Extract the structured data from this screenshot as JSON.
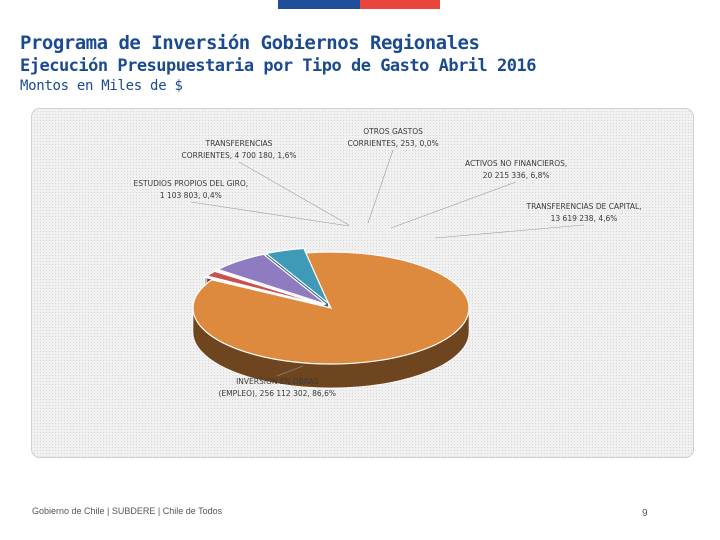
{
  "header": {
    "title": "Programa de Inversión Gobiernos Regionales",
    "subtitle": "Ejecución Presupuestaria por Tipo de Gasto Abril 2016",
    "units": "Montos en Miles de $"
  },
  "chart_data": {
    "type": "pie",
    "style": "3d-exploded",
    "slices": [
      {
        "name": "INVERSION EN OBRAS (EMPLEO)",
        "value": 256112302,
        "percent": 86.6,
        "label": "INVERSION EN OBRAS (EMPLEO), 256 112 302, 86,6%",
        "color": "#dd8a3e"
      },
      {
        "name": "ESTUDIOS PROPIOS DEL GIRO",
        "value": 1103803,
        "percent": 0.4,
        "label": "ESTUDIOS PROPIOS DEL GIRO, 1 103 803, 0,4%",
        "color": "#f3f3f3"
      },
      {
        "name": "TRANSFERENCIAS CORRIENTES",
        "value": 4700180,
        "percent": 1.6,
        "label": "TRANSFERENCIAS CORRIENTES, 4 700 180, 1,6%",
        "color": "#c9524f"
      },
      {
        "name": "OTROS GASTOS CORRIENTES",
        "value": 253,
        "percent": 0.0,
        "label": "OTROS GASTOS CORRIENTES, 253, 0,0%",
        "color": "#dcdcdc"
      },
      {
        "name": "ACTIVOS NO FINANCIEROS",
        "value": 20215336,
        "percent": 6.8,
        "label": "ACTIVOS NO FINANCIEROS, 20 215 336, 6,8%",
        "color": "#8f7cc0"
      },
      {
        "name": "TRANSFERENCIAS DE CAPITAL",
        "value": 13619238,
        "percent": 4.6,
        "label": "TRANSFERENCIAS DE CAPITAL, 13 619 238, 4,6%",
        "color": "#3f9ab8"
      }
    ],
    "label_lines": {
      "TRANSFERENCIAS CORRIENTES": [
        "TRANSFERENCIAS",
        "CORRIENTES, 4 700 180, 1,6%"
      ],
      "OTROS GASTOS CORRIENTES": [
        "OTROS GASTOS",
        "CORRIENTES, 253, 0,0%"
      ],
      "ESTUDIOS PROPIOS DEL GIRO": [
        "ESTUDIOS PROPIOS DEL GIRO,",
        "1 103 803, 0,4%"
      ],
      "ACTIVOS NO FINANCIEROS": [
        "ACTIVOS NO FINANCIEROS,",
        "20 215 336, 6,8%"
      ],
      "TRANSFERENCIAS DE CAPITAL": [
        "TRANSFERENCIAS DE CAPITAL,",
        "13 619 238, 4,6%"
      ],
      "INVERSION EN OBRAS (EMPLEO)": [
        "INVERSION EN OBRAS",
        "(EMPLEO), 256 112 302, 86,6%"
      ]
    },
    "legend": "none",
    "grid": false
  },
  "footer": {
    "text": "Gobierno de Chile | SUBDERE | Chile de Todos",
    "page": "9"
  },
  "colors": {
    "title": "#1b4a8e",
    "flag_blue": "#1f4e9b",
    "flag_red": "#e8453c"
  }
}
